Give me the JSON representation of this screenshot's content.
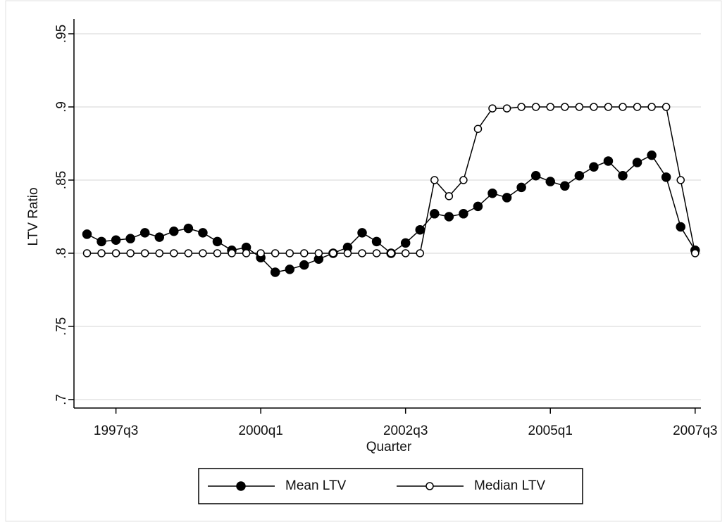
{
  "chart_data": {
    "type": "line",
    "x_label": "Quarter",
    "y_label": "LTV Ratio",
    "x": [
      148,
      149,
      150,
      151,
      152,
      153,
      154,
      155,
      156,
      157,
      158,
      159,
      160,
      161,
      162,
      163,
      164,
      165,
      166,
      167,
      168,
      169,
      170,
      171,
      172,
      173,
      174,
      175,
      176,
      177,
      178,
      179,
      180,
      181,
      182,
      183,
      184,
      185,
      186,
      187,
      188,
      189,
      190
    ],
    "series": [
      {
        "name": "Mean LTV",
        "color": "#000000",
        "marker": "filled",
        "values": [
          0.813,
          0.808,
          0.809,
          0.81,
          0.814,
          0.811,
          0.815,
          0.817,
          0.814,
          0.808,
          0.802,
          0.804,
          0.797,
          0.787,
          0.789,
          0.792,
          0.796,
          0.8,
          0.804,
          0.814,
          0.808,
          0.8,
          0.807,
          0.816,
          0.827,
          0.825,
          0.827,
          0.832,
          0.841,
          0.838,
          0.845,
          0.853,
          0.849,
          0.846,
          0.853,
          0.859,
          0.863,
          0.853,
          0.862,
          0.867,
          0.852,
          0.818,
          0.802
        ]
      },
      {
        "name": "Median LTV",
        "color": "#000000",
        "marker": "hollow",
        "values": [
          0.8,
          0.8,
          0.8,
          0.8,
          0.8,
          0.8,
          0.8,
          0.8,
          0.8,
          0.8,
          0.8,
          0.8,
          0.8,
          0.8,
          0.8,
          0.8,
          0.8,
          0.8,
          0.8,
          0.8,
          0.8,
          0.8,
          0.8,
          0.8,
          0.85,
          0.839,
          0.85,
          0.885,
          0.899,
          0.899,
          0.9,
          0.9,
          0.9,
          0.9,
          0.9,
          0.9,
          0.9,
          0.9,
          0.9,
          0.9,
          0.9,
          0.85,
          0.8
        ]
      }
    ],
    "xlim": [
      147.1,
      190.4
    ],
    "xticks": [
      {
        "value": 150,
        "label": "1997q3"
      },
      {
        "value": 160,
        "label": "2000q1"
      },
      {
        "value": 170,
        "label": "2002q3"
      },
      {
        "value": 180,
        "label": "2005q1"
      },
      {
        "value": 190,
        "label": "2007q3"
      }
    ],
    "ylim": [
      0.6942,
      0.9601
    ],
    "yticks": [
      {
        "value": 0.7,
        "label": ".7"
      },
      {
        "value": 0.75,
        "label": ".75"
      },
      {
        "value": 0.8,
        "label": ".8"
      },
      {
        "value": 0.85,
        "label": ".85"
      },
      {
        "value": 0.9,
        "label": ".9"
      },
      {
        "value": 0.95,
        "label": ".95"
      }
    ],
    "grid": true,
    "legend": "bottom"
  }
}
